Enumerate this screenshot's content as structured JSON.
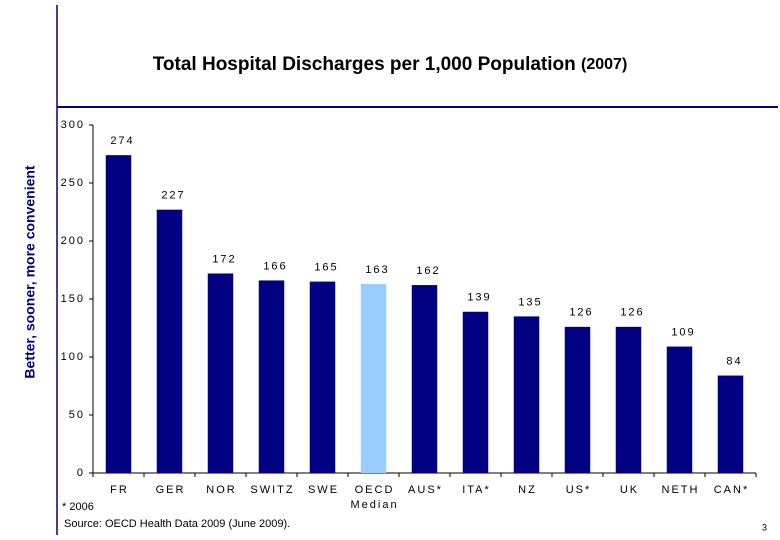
{
  "slogan": "Better, sooner, more convenient",
  "footnote": "* 2006",
  "source": "Source: OECD Health Data 2009 (June 2009).",
  "page_number": "3",
  "chart_data": {
    "type": "bar",
    "title": "Total Hospital Discharges per 1,000 Population",
    "subtitle": "(2007)",
    "categories": [
      "FR",
      "GER",
      "NOR",
      "SWITZ",
      "SWE",
      "OECD Median",
      "AUS*",
      "ITA*",
      "NZ",
      "US*",
      "UK",
      "NETH",
      "CAN*"
    ],
    "values": [
      274,
      227,
      172,
      166,
      165,
      163,
      162,
      139,
      135,
      126,
      126,
      109,
      84
    ],
    "colors": [
      "#000080",
      "#000080",
      "#000080",
      "#000080",
      "#000080",
      "#99ccff",
      "#000080",
      "#000080",
      "#000080",
      "#000080",
      "#000080",
      "#000080",
      "#000080"
    ],
    "ylim": [
      0,
      300
    ],
    "yticks": [
      0,
      50,
      100,
      150,
      200,
      250,
      300
    ]
  }
}
